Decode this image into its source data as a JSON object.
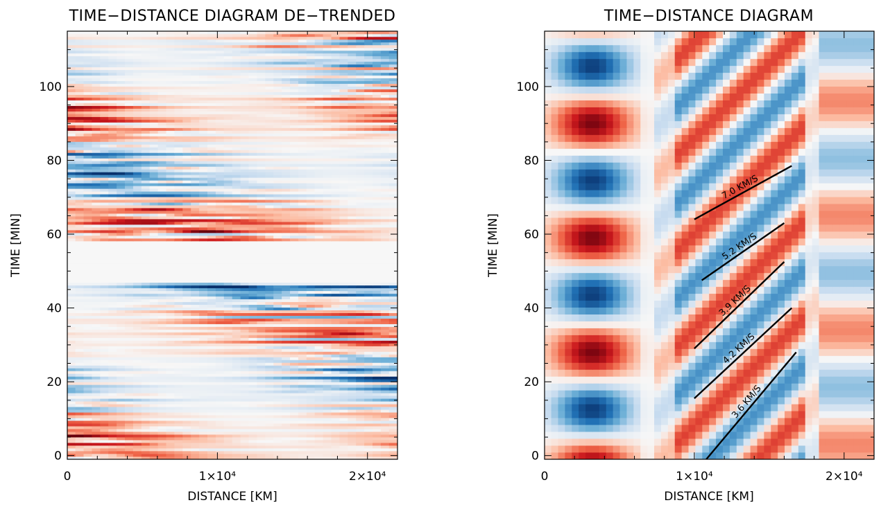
{
  "chart_data": [
    {
      "type": "heatmap",
      "title": "TIME−DISTANCE DIAGRAM DE−TRENDED",
      "xlabel": "DISTANCE [KM]",
      "ylabel": "TIME [MIN]",
      "xlim": [
        0,
        22000
      ],
      "ylim": [
        -1,
        115
      ],
      "xticks": [
        {
          "value": 0,
          "label": "0"
        },
        {
          "value": 10000,
          "label": "1×10⁴"
        },
        {
          "value": 20000,
          "label": "2×10⁴"
        }
      ],
      "yticks": [
        {
          "value": 0,
          "label": "0"
        },
        {
          "value": 20,
          "label": "20"
        },
        {
          "value": 40,
          "label": "40"
        },
        {
          "value": 60,
          "label": "60"
        },
        {
          "value": 80,
          "label": "80"
        },
        {
          "value": 100,
          "label": "100"
        }
      ],
      "colormap": [
        "#08306b",
        "#2171b5",
        "#6baed6",
        "#c6dbef",
        "#f7f7f7",
        "#fcbba1",
        "#ef6548",
        "#cb181d",
        "#67000d"
      ]
    },
    {
      "type": "heatmap",
      "title": "TIME−DISTANCE DIAGRAM",
      "xlabel": "DISTANCE [KM]",
      "ylabel": "TIME [MIN]",
      "xlim": [
        0,
        22000
      ],
      "ylim": [
        -1,
        115
      ],
      "xticks": [
        {
          "value": 0,
          "label": "0"
        },
        {
          "value": 10000,
          "label": "1×10⁴"
        },
        {
          "value": 20000,
          "label": "2×10⁴"
        }
      ],
      "yticks": [
        {
          "value": 0,
          "label": "0"
        },
        {
          "value": 20,
          "label": "20"
        },
        {
          "value": 40,
          "label": "40"
        },
        {
          "value": 60,
          "label": "60"
        },
        {
          "value": 80,
          "label": "80"
        },
        {
          "value": 100,
          "label": "100"
        }
      ],
      "colormap": [
        "#08306b",
        "#2171b5",
        "#6baed6",
        "#c6dbef",
        "#f7f7f7",
        "#fcbba1",
        "#ef6548",
        "#cb181d",
        "#67000d"
      ],
      "velocity_fits": [
        {
          "label": "7.0 KM/S",
          "x": [
            10000,
            16500
          ],
          "y": [
            64,
            78.5
          ]
        },
        {
          "label": "5.2 KM/S",
          "x": [
            10500,
            16000
          ],
          "y": [
            47.5,
            63
          ]
        },
        {
          "label": "3.9 KM/S",
          "x": [
            10000,
            16000
          ],
          "y": [
            29,
            52.5
          ]
        },
        {
          "label": "4.2 KM/S",
          "x": [
            10000,
            16500
          ],
          "y": [
            15.5,
            40
          ]
        },
        {
          "label": "3.6 KM/S",
          "x": [
            10800,
            16800
          ],
          "y": [
            -1,
            28
          ]
        }
      ]
    }
  ]
}
